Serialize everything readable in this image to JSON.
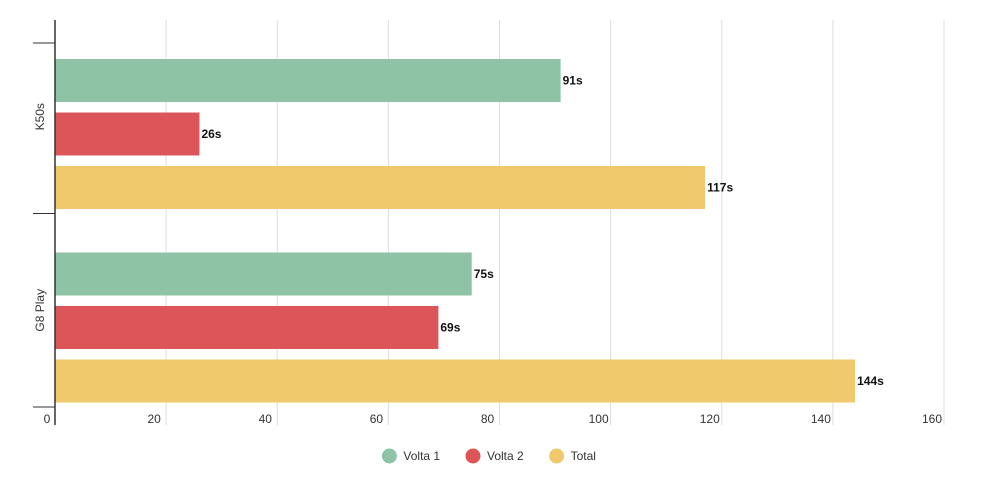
{
  "chart_data": {
    "type": "bar",
    "orientation": "horizontal",
    "categories": [
      "K50s",
      "G8 Play"
    ],
    "series": [
      {
        "name": "Volta 1",
        "color": "#8fc3a6",
        "values": [
          91,
          75
        ],
        "labels": [
          "91s",
          "75s"
        ]
      },
      {
        "name": "Volta 2",
        "color": "#dc5558",
        "values": [
          26,
          69
        ],
        "labels": [
          "26s",
          "69s"
        ]
      },
      {
        "name": "Total",
        "color": "#efc96b",
        "values": [
          117,
          144
        ],
        "labels": [
          "117s",
          "144s"
        ]
      }
    ],
    "xlim": [
      0,
      160
    ],
    "xticks": [
      0,
      20,
      40,
      60,
      80,
      100,
      120,
      140,
      160
    ],
    "grid": true,
    "legend_position": "bottom-center",
    "title": "",
    "xlabel": "",
    "ylabel": ""
  }
}
